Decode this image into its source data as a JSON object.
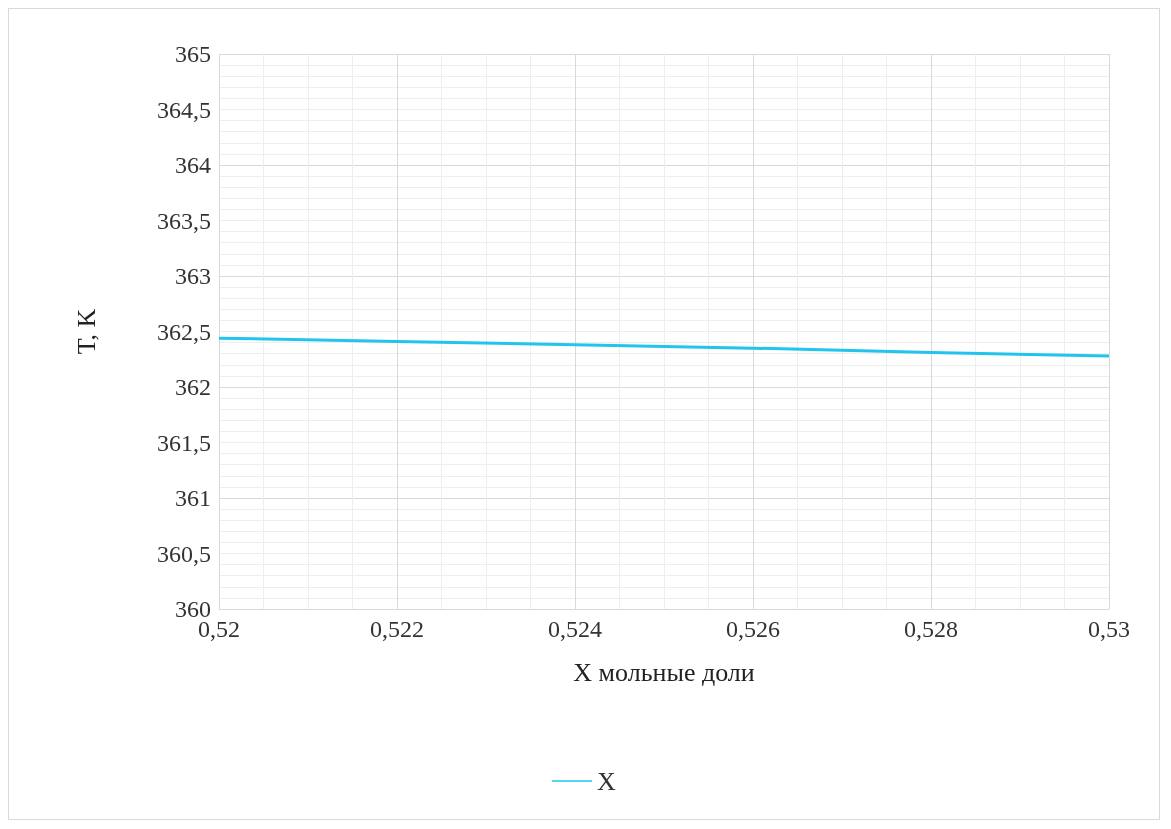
{
  "chart_data": {
    "type": "line",
    "xlabel": "X мольные доли",
    "ylabel": "T, K",
    "x": [
      0.52,
      0.522,
      0.524,
      0.526,
      0.528,
      0.53
    ],
    "series": [
      {
        "name": "X",
        "color": "#22c4ee",
        "values": [
          362.44,
          362.41,
          362.38,
          362.35,
          362.31,
          362.28
        ]
      }
    ],
    "xlim": [
      0.52,
      0.53
    ],
    "xticks": [
      {
        "value": 0.52,
        "label": "0,52"
      },
      {
        "value": 0.522,
        "label": "0,522"
      },
      {
        "value": 0.524,
        "label": "0,524"
      },
      {
        "value": 0.526,
        "label": "0,526"
      },
      {
        "value": 0.528,
        "label": "0,528"
      },
      {
        "value": 0.53,
        "label": "0,53"
      }
    ],
    "ylim": [
      360,
      365
    ],
    "yticks": [
      360,
      {
        "value": 360.5,
        "label": "360,5"
      },
      361,
      {
        "value": 361.5,
        "label": "361,5"
      },
      362,
      {
        "value": 362.5,
        "label": "362,5"
      },
      363,
      {
        "value": 363.5,
        "label": "363,5"
      },
      364,
      {
        "value": 364.5,
        "label": "364,5"
      },
      365
    ],
    "grid": true,
    "legend": "bottom",
    "marker": "none",
    "line_style": "solid"
  }
}
